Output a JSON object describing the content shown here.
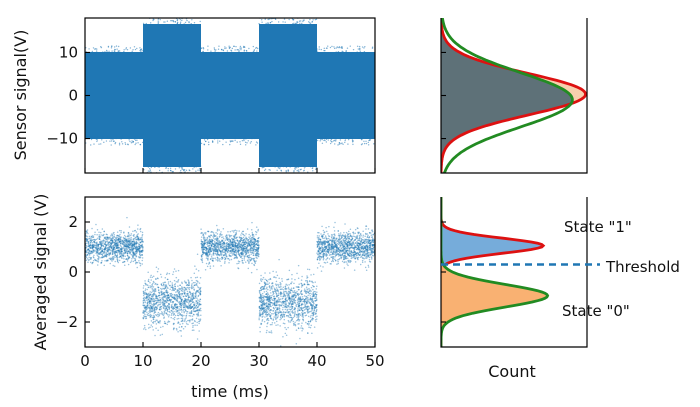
{
  "chart_data": [
    {
      "type": "scatter",
      "panel": "top-left",
      "ylabel": "Sensor signal(V)",
      "xlim": [
        0,
        50
      ],
      "ylim": [
        -18,
        18
      ],
      "yticks": [
        "10",
        "0",
        "−10"
      ],
      "ytick_values": [
        10,
        0,
        -10
      ],
      "segments": [
        {
          "x": [
            0,
            10
          ],
          "spread": 11.5
        },
        {
          "x": [
            10,
            20
          ],
          "spread": 18
        },
        {
          "x": [
            20,
            30
          ],
          "spread": 11.5
        },
        {
          "x": [
            30,
            40
          ],
          "spread": 18
        },
        {
          "x": [
            40,
            50
          ],
          "spread": 11.5
        }
      ],
      "color": "#1f77b4"
    },
    {
      "type": "area",
      "panel": "top-right",
      "xlabel": "",
      "description_free": true,
      "curves": [
        {
          "edge": "#dd1111",
          "fill": "#f7cfae",
          "center": 0.3,
          "width": 4.8
        },
        {
          "edge": "#228b22",
          "fill": "none",
          "center": -1.0,
          "width": 6.3
        }
      ],
      "overlap_fill": "#5e7178",
      "ylim": [
        -18,
        18
      ]
    },
    {
      "type": "scatter",
      "panel": "bottom-left",
      "xlabel": "time (ms)",
      "ylabel": "Averaged signal (V)",
      "xlim": [
        0,
        50
      ],
      "ylim": [
        -3,
        3
      ],
      "xticks": [
        "0",
        "10",
        "20",
        "30",
        "40",
        "50"
      ],
      "xtick_values": [
        0,
        10,
        20,
        30,
        40,
        50
      ],
      "yticks": [
        "2",
        "0",
        "−2"
      ],
      "ytick_values": [
        2,
        0,
        -2
      ],
      "segments": [
        {
          "x": [
            0,
            10
          ],
          "mean": 1.0,
          "sd": 0.3
        },
        {
          "x": [
            10,
            20
          ],
          "mean": -1.2,
          "sd": 0.5
        },
        {
          "x": [
            20,
            30
          ],
          "mean": 1.0,
          "sd": 0.3
        },
        {
          "x": [
            30,
            40
          ],
          "mean": -1.2,
          "sd": 0.5
        },
        {
          "x": [
            40,
            50
          ],
          "mean": 1.0,
          "sd": 0.3
        }
      ],
      "color": "#1f77b4"
    },
    {
      "type": "area",
      "panel": "bottom-right",
      "xlabel": "Count",
      "ylim": [
        -3,
        3
      ],
      "curves": [
        {
          "name": "State \"1\"",
          "edge": "#dd1111",
          "fill": "#6fa8d8",
          "center": 1.05,
          "sd": 0.3
        },
        {
          "name": "State \"0\"",
          "edge": "#228b22",
          "fill": "#f9ad6a",
          "center": -0.95,
          "sd": 0.45
        }
      ],
      "threshold": {
        "label": "Threshold",
        "value": 0.3,
        "color": "#1f77b4"
      }
    }
  ],
  "labels": {
    "state1": "State \"1\"",
    "state0": "State \"0\"",
    "threshold": "Threshold",
    "count": "Count"
  }
}
